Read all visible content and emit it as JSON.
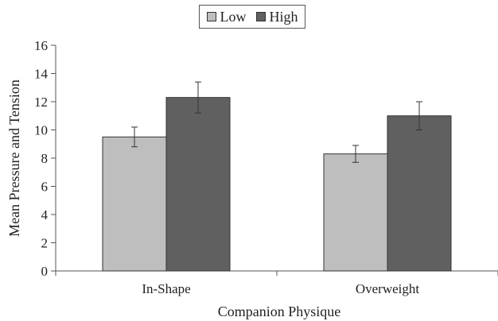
{
  "chart_data": {
    "type": "bar",
    "title": "",
    "xlabel": "Companion Physique",
    "ylabel": "Mean Pressure and Tension",
    "categories": [
      "In-Shape",
      "Overweight"
    ],
    "series": [
      {
        "name": "Low",
        "color": "#bebebe",
        "values": [
          9.5,
          8.3
        ],
        "error": [
          0.7,
          0.6
        ]
      },
      {
        "name": "High",
        "color": "#606060",
        "values": [
          12.3,
          11.0
        ],
        "error": [
          1.1,
          1.0
        ]
      }
    ],
    "ylim": [
      0,
      16
    ],
    "yticks": [
      "0",
      "2",
      "4",
      "6",
      "8",
      "10",
      "12",
      "14",
      "16"
    ],
    "grid": false,
    "legend_position": "top-center"
  }
}
